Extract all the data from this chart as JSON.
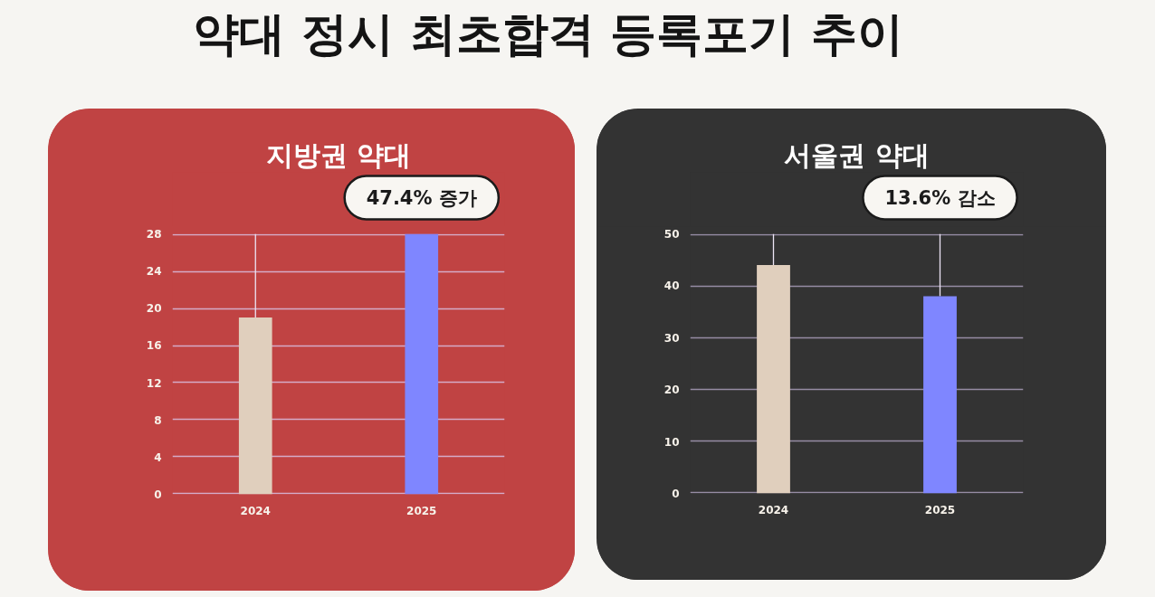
{
  "chart_data": [
    {
      "type": "other",
      "title": "약대 정시 최초합격 등록포기 추이"
    },
    {
      "type": "bar",
      "title": "지방권 약대",
      "categories": [
        "2024",
        "2025"
      ],
      "values": [
        19,
        28
      ],
      "colors": [
        "#e0cfbd",
        "#7f86ff"
      ],
      "errors": [
        [
          19,
          28
        ],
        null
      ],
      "ylim": [
        0,
        28
      ],
      "yticks": [
        0,
        4,
        8,
        12,
        16,
        20,
        24,
        28
      ],
      "grid": "y",
      "annotations": [
        {
          "text": "47.4% 증가",
          "x": "2025",
          "y": 28
        }
      ]
    },
    {
      "type": "bar",
      "title": "서울권 약대",
      "categories": [
        "2024",
        "2025"
      ],
      "values": [
        44,
        38
      ],
      "colors": [
        "#e0cfbd",
        "#7f86ff"
      ],
      "errors": [
        [
          44,
          50
        ],
        [
          38,
          50
        ]
      ],
      "ylim": [
        0,
        50
      ],
      "yticks": [
        0,
        10,
        20,
        30,
        40,
        50
      ],
      "grid": "y",
      "annotations": [
        {
          "text": "13.6% 감소",
          "x": "2025",
          "y": 50
        }
      ]
    }
  ]
}
